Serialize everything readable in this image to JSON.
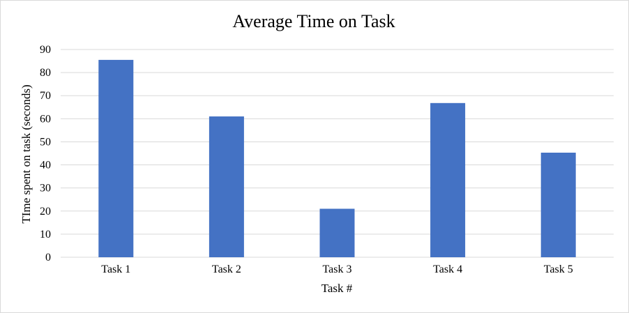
{
  "chart_data": {
    "type": "bar",
    "title": "Average Time on Task",
    "xlabel": "Task #",
    "ylabel": "TIme spent on task (seconds)",
    "categories": [
      "Task 1",
      "Task 2",
      "Task 3",
      "Task 4",
      "Task 5"
    ],
    "values": [
      85.5,
      61,
      21,
      66.8,
      45.3
    ],
    "ylim": [
      0,
      90
    ],
    "yticks": [
      0,
      10,
      20,
      30,
      40,
      50,
      60,
      70,
      80,
      90
    ],
    "grid": true,
    "legend": "none",
    "bar_color": "#4472c4",
    "grid_color": "#d9d9d9"
  }
}
